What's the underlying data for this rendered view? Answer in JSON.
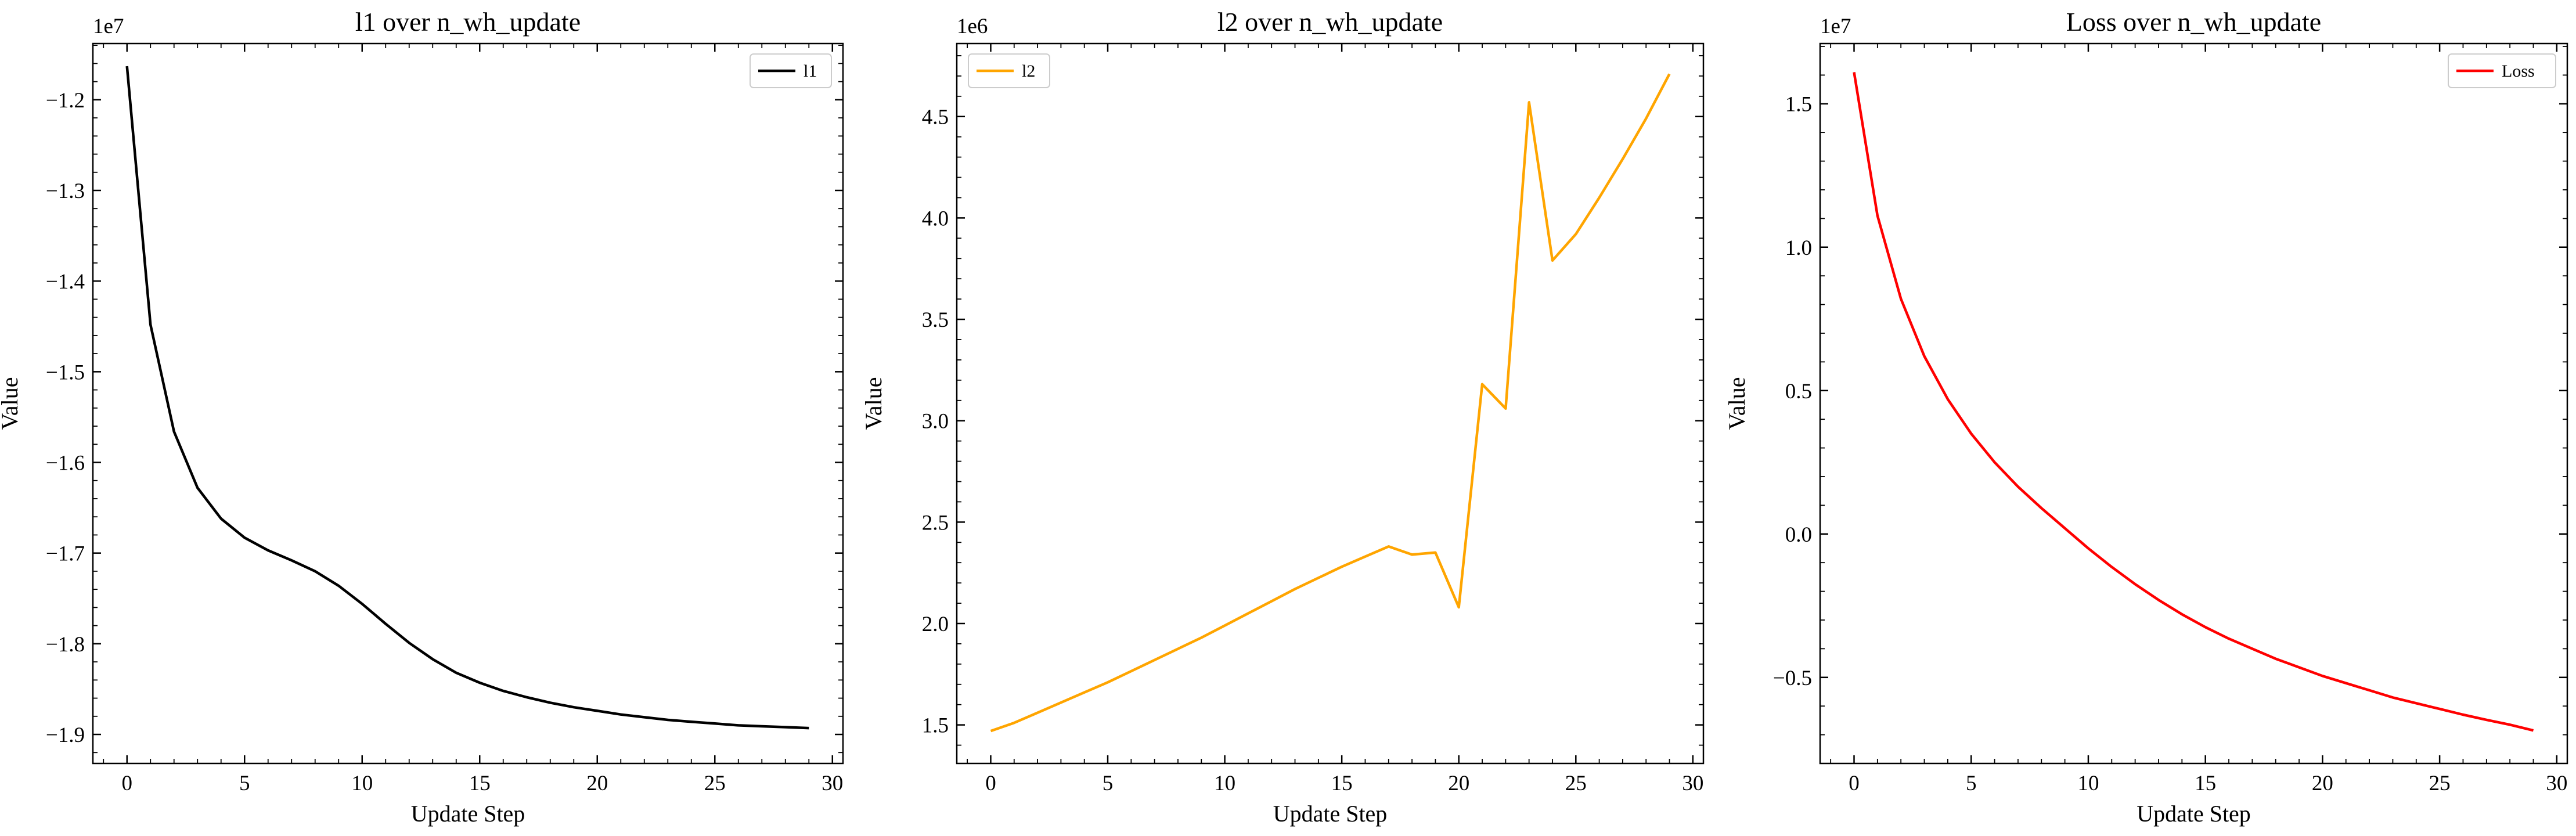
{
  "chart_data": [
    {
      "type": "line",
      "title": "l1 over n_wh_update",
      "xlabel": "Update Step",
      "ylabel": "Value",
      "offset_text": "1e7",
      "legend_location": "upper right",
      "grid": false,
      "xlim": [
        -1.45,
        30.45
      ],
      "ylim": [
        -1.932,
        -1.138
      ],
      "xticks": [
        0,
        5,
        10,
        15,
        20,
        25,
        30
      ],
      "xtick_labels": [
        "0",
        "5",
        "10",
        "15",
        "20",
        "25",
        "30"
      ],
      "yticks": [
        -1.9,
        -1.8,
        -1.7,
        -1.6,
        -1.5,
        -1.4,
        -1.3,
        -1.2
      ],
      "ytick_labels": [
        "−1.9",
        "−1.8",
        "−1.7",
        "−1.6",
        "−1.5",
        "−1.4",
        "−1.3",
        "−1.2"
      ],
      "series": [
        {
          "name": "l1",
          "color": "#000000",
          "x": [
            0,
            1,
            2,
            3,
            4,
            5,
            6,
            7,
            8,
            9,
            10,
            11,
            12,
            13,
            14,
            15,
            16,
            17,
            18,
            19,
            20,
            21,
            22,
            23,
            24,
            25,
            26,
            27,
            28,
            29
          ],
          "y": [
            -1.163,
            -1.448,
            -1.566,
            -1.628,
            -1.662,
            -1.683,
            -1.697,
            -1.708,
            -1.72,
            -1.736,
            -1.756,
            -1.778,
            -1.799,
            -1.817,
            -1.832,
            -1.843,
            -1.852,
            -1.859,
            -1.865,
            -1.87,
            -1.874,
            -1.878,
            -1.881,
            -1.884,
            -1.886,
            -1.888,
            -1.89,
            -1.891,
            -1.892,
            -1.893
          ]
        }
      ]
    },
    {
      "type": "line",
      "title": "l2 over n_wh_update",
      "xlabel": "Update Step",
      "ylabel": "Value",
      "offset_text": "1e6",
      "legend_location": "upper left",
      "grid": false,
      "xlim": [
        -1.45,
        30.45
      ],
      "ylim": [
        1.31,
        4.86
      ],
      "xticks": [
        0,
        5,
        10,
        15,
        20,
        25,
        30
      ],
      "xtick_labels": [
        "0",
        "5",
        "10",
        "15",
        "20",
        "25",
        "30"
      ],
      "yticks": [
        1.5,
        2.0,
        2.5,
        3.0,
        3.5,
        4.0,
        4.5
      ],
      "ytick_labels": [
        "1.5",
        "2.0",
        "2.5",
        "3.0",
        "3.5",
        "4.0",
        "4.5"
      ],
      "series": [
        {
          "name": "l2",
          "color": "#ffa500",
          "x": [
            0,
            1,
            2,
            3,
            4,
            5,
            6,
            7,
            8,
            9,
            10,
            11,
            12,
            13,
            14,
            15,
            16,
            17,
            18,
            19,
            20,
            21,
            22,
            23,
            24,
            25,
            26,
            27,
            28,
            29
          ],
          "y": [
            1.47,
            1.51,
            1.56,
            1.61,
            1.66,
            1.71,
            1.765,
            1.82,
            1.875,
            1.93,
            1.99,
            2.05,
            2.11,
            2.17,
            2.225,
            2.28,
            2.33,
            2.38,
            2.34,
            2.35,
            2.08,
            3.18,
            3.06,
            4.57,
            3.79,
            3.92,
            4.1,
            4.29,
            4.49,
            4.71
          ]
        }
      ]
    },
    {
      "type": "line",
      "title": "Loss over n_wh_update",
      "xlabel": "Update Step",
      "ylabel": "Value",
      "offset_text": "1e7",
      "legend_location": "upper right",
      "grid": false,
      "xlim": [
        -1.45,
        30.45
      ],
      "ylim": [
        -0.8,
        1.71
      ],
      "xticks": [
        0,
        5,
        10,
        15,
        20,
        25,
        30
      ],
      "xtick_labels": [
        "0",
        "5",
        "10",
        "15",
        "20",
        "25",
        "30"
      ],
      "yticks": [
        -0.5,
        0.0,
        0.5,
        1.0,
        1.5
      ],
      "ytick_labels": [
        "−0.5",
        "0.0",
        "0.5",
        "1.0",
        "1.5"
      ],
      "series": [
        {
          "name": "Loss",
          "color": "#ff0000",
          "x": [
            0,
            1,
            2,
            3,
            4,
            5,
            6,
            7,
            8,
            9,
            10,
            11,
            12,
            13,
            14,
            15,
            16,
            17,
            18,
            19,
            20,
            21,
            22,
            23,
            24,
            25,
            26,
            27,
            28,
            29
          ],
          "y": [
            1.61,
            1.11,
            0.82,
            0.62,
            0.47,
            0.35,
            0.25,
            0.165,
            0.09,
            0.02,
            -0.05,
            -0.115,
            -0.175,
            -0.23,
            -0.28,
            -0.325,
            -0.365,
            -0.4,
            -0.435,
            -0.465,
            -0.495,
            -0.52,
            -0.545,
            -0.57,
            -0.59,
            -0.61,
            -0.63,
            -0.648,
            -0.665,
            -0.685
          ]
        }
      ]
    }
  ]
}
